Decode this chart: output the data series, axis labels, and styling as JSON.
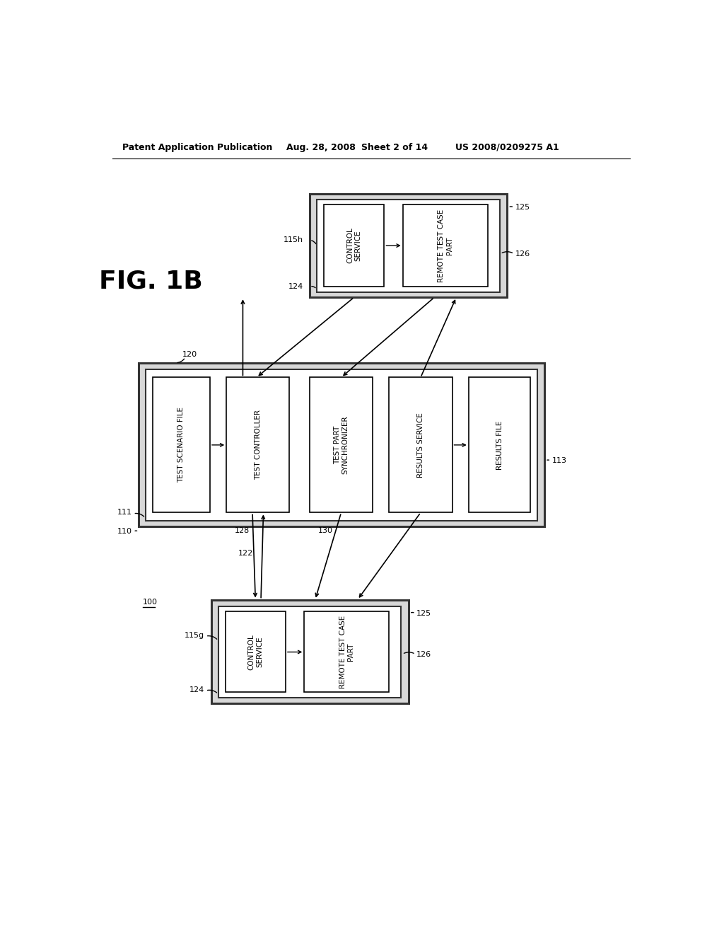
{
  "bg_color": "#ffffff",
  "header_text": "Patent Application Publication",
  "header_date": "Aug. 28, 2008",
  "header_sheet": "Sheet 2 of 14",
  "header_patent": "US 2008/0209275 A1",
  "fig_label": "FIG. 1B",
  "text_color": "#000000"
}
